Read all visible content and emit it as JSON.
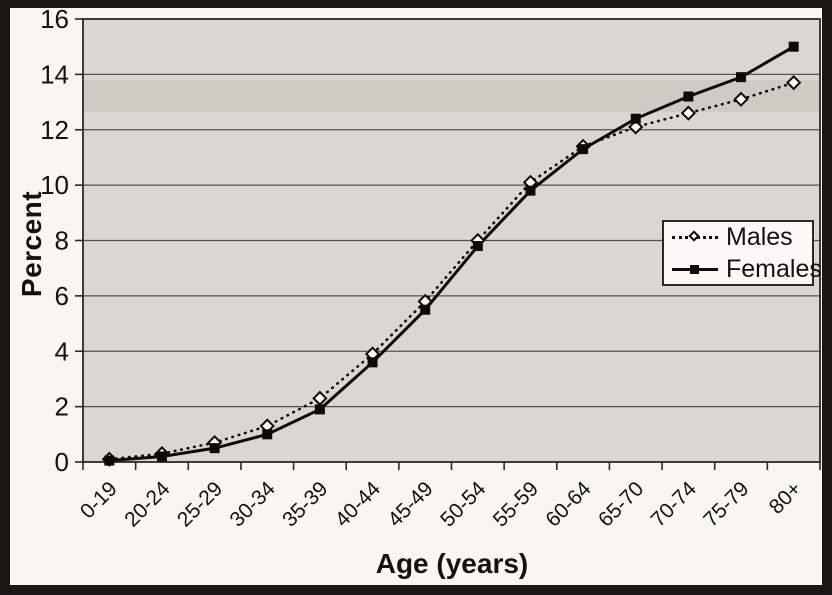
{
  "figure": {
    "frame_color": "#181714",
    "page_color": "#f7f6f1"
  },
  "chart": {
    "ylabel": "Percent",
    "xlabel": "Age (years)",
    "legend": {
      "males": "Males",
      "females": "Females"
    },
    "colors": {
      "plot_bg": "#d8d7d1",
      "grid": "#56534e",
      "axis": "#2b2926",
      "line": "#0c0b09",
      "text": "#14120f"
    }
  },
  "chart_data": {
    "type": "line",
    "title": "",
    "xlabel": "Age (years)",
    "ylabel": "Percent",
    "categories": [
      "0-19",
      "20-24",
      "25-29",
      "30-34",
      "35-39",
      "40-44",
      "45-49",
      "50-54",
      "55-59",
      "60-64",
      "65-70",
      "70-74",
      "75-79",
      "80+"
    ],
    "series": [
      {
        "name": "Males",
        "style": "dotted",
        "marker": "open-diamond",
        "values": [
          0.1,
          0.3,
          0.7,
          1.3,
          2.3,
          3.9,
          5.8,
          8.0,
          10.1,
          11.4,
          12.1,
          12.6,
          13.1,
          13.7
        ]
      },
      {
        "name": "Females",
        "style": "solid",
        "marker": "filled-square",
        "values": [
          0.05,
          0.2,
          0.5,
          1.0,
          1.9,
          3.6,
          5.5,
          7.8,
          9.8,
          11.3,
          12.4,
          13.2,
          13.9,
          15.0
        ]
      }
    ],
    "ylim": [
      0,
      16
    ],
    "ytick_step": 2,
    "grid": "horizontal",
    "legend_position": "middle-right"
  }
}
